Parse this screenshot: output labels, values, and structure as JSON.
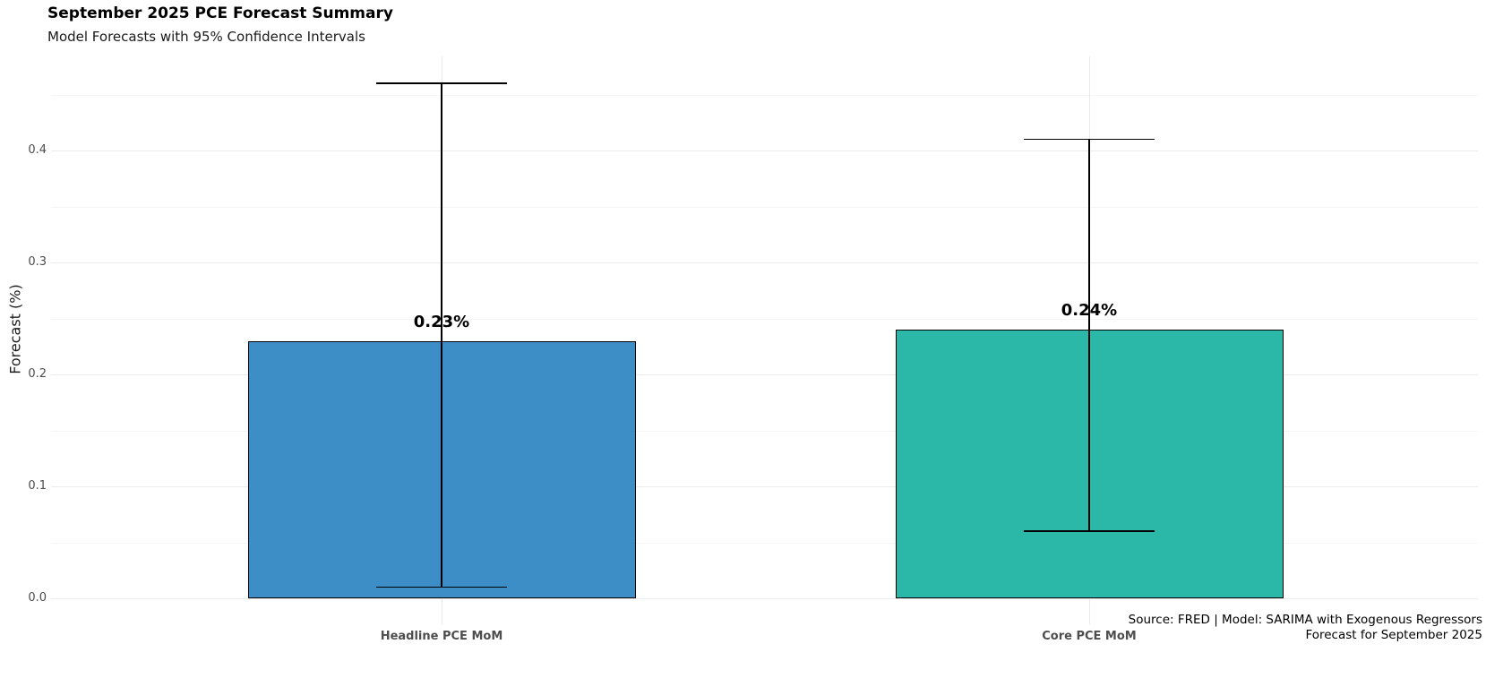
{
  "header": {
    "title": "September 2025 PCE Forecast Summary",
    "subtitle": "Model Forecasts with 95% Confidence Intervals"
  },
  "chart_data": {
    "type": "bar",
    "title": "September 2025 PCE Forecast Summary",
    "subtitle": "Model Forecasts with 95% Confidence Intervals",
    "categories": [
      "Headline PCE MoM",
      "Core PCE MoM"
    ],
    "values": [
      0.23,
      0.24
    ],
    "value_labels": [
      "0.23%",
      "0.24%"
    ],
    "ci_level": "95%",
    "ci_lower": [
      0.01,
      0.06
    ],
    "ci_upper": [
      0.46,
      0.41
    ],
    "bar_colors": [
      "#3d8ec6",
      "#2bb8a8"
    ],
    "bar_border_color": "#000000",
    "errorbar_color": "#000000",
    "xlabel": "",
    "ylabel": "Forecast (%)",
    "ylim": [
      -0.023,
      0.484
    ],
    "yticks": [
      0.0,
      0.1,
      0.2,
      0.3,
      0.4
    ],
    "ytick_labels": [
      "0.0",
      "0.1",
      "0.2",
      "0.3",
      "0.4"
    ],
    "minor_yticks": [
      0.05,
      0.15,
      0.25,
      0.35,
      0.45
    ],
    "grid": true,
    "legend": false
  },
  "footer": {
    "line1": "Source: FRED | Model: SARIMA with Exogenous Regressors",
    "line2": "Forecast for September 2025"
  }
}
